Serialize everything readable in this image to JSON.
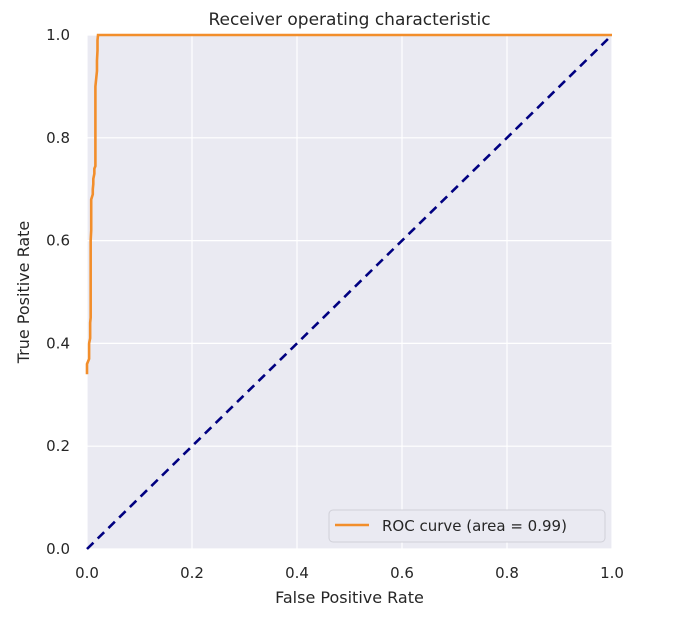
{
  "chart_data": {
    "type": "line",
    "title": "Receiver operating characteristic",
    "xlabel": "False Positive Rate",
    "ylabel": "True Positive Rate",
    "xlim": [
      0.0,
      1.0
    ],
    "ylim": [
      0.0,
      1.0
    ],
    "x_ticks": [
      0.0,
      0.2,
      0.4,
      0.6,
      0.8,
      1.0
    ],
    "y_ticks": [
      0.0,
      0.2,
      0.4,
      0.6,
      0.8,
      1.0
    ],
    "x_tick_labels": [
      "0.0",
      "0.2",
      "0.4",
      "0.6",
      "0.8",
      "1.0"
    ],
    "y_tick_labels": [
      "0.0",
      "0.2",
      "0.4",
      "0.6",
      "0.8",
      "1.0"
    ],
    "grid": true,
    "legend_position": "lower-right",
    "legend_label": "ROC curve (area = 0.99)",
    "series": [
      {
        "name": "ROC curve (area = 0.99)",
        "color": "#f28e2b",
        "style": "solid",
        "x": [
          0.0,
          0.0,
          0.004,
          0.004,
          0.006,
          0.006,
          0.007,
          0.007,
          0.008,
          0.008,
          0.011,
          0.011,
          0.012,
          0.012,
          0.014,
          0.014,
          0.016,
          0.016,
          0.019,
          0.019,
          0.02,
          0.02,
          0.021,
          0.021,
          1.0
        ],
        "y": [
          0.34,
          0.36,
          0.37,
          0.4,
          0.41,
          0.44,
          0.45,
          0.6,
          0.62,
          0.68,
          0.69,
          0.7,
          0.71,
          0.72,
          0.73,
          0.74,
          0.745,
          0.9,
          0.93,
          0.95,
          0.97,
          0.99,
          1.0,
          1.0,
          1.0
        ]
      },
      {
        "name": "",
        "color": "#000080",
        "style": "dashed",
        "x": [
          0.0,
          1.0
        ],
        "y": [
          0.0,
          1.0
        ]
      }
    ]
  }
}
